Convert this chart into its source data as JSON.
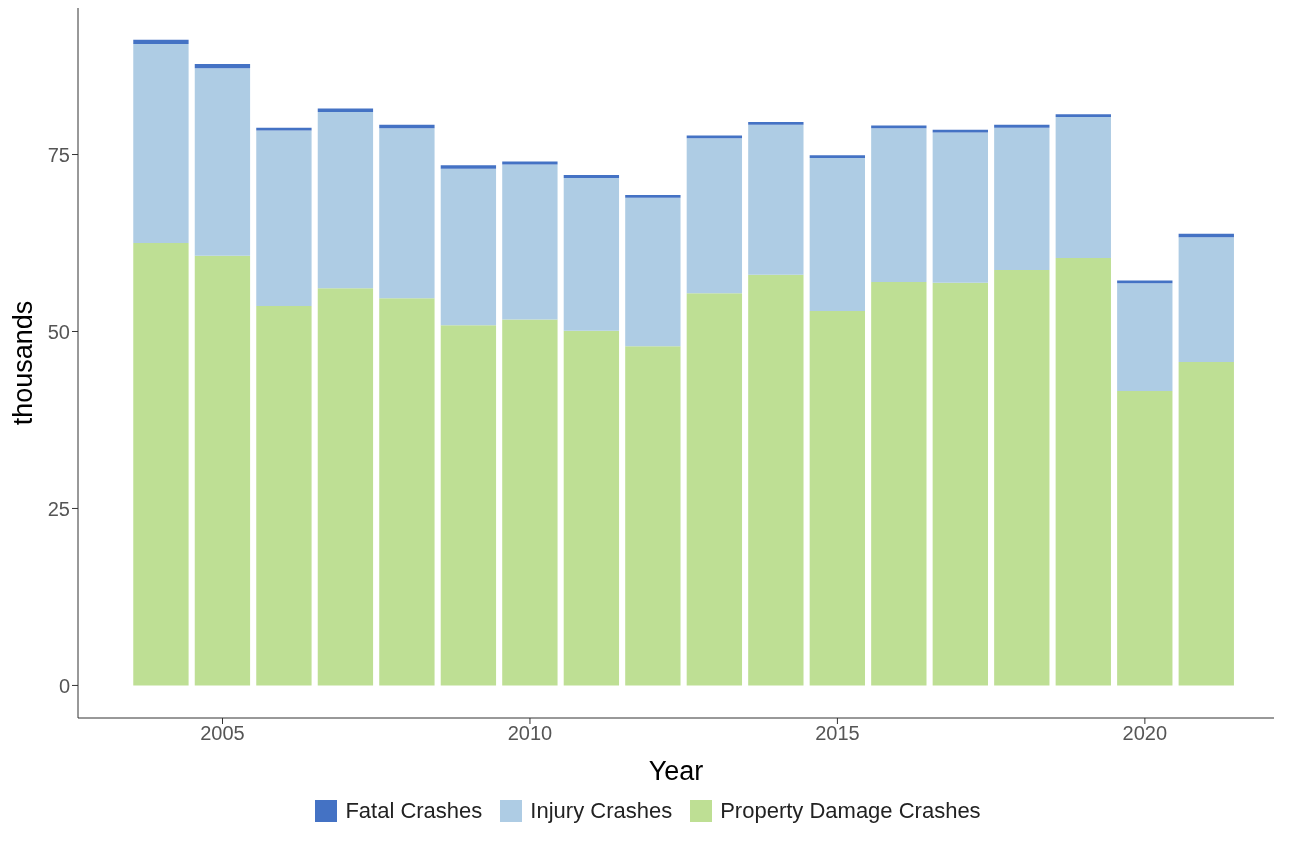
{
  "chart_data": {
    "type": "bar",
    "stacked": true,
    "xlabel": "Year",
    "ylabel": "thousands",
    "x": [
      2004,
      2005,
      2006,
      2007,
      2008,
      2009,
      2010,
      2011,
      2012,
      2013,
      2014,
      2015,
      2016,
      2017,
      2018,
      2019,
      2020,
      2021
    ],
    "series": [
      {
        "name": "Property Damage Crashes",
        "color": "#bedf94",
        "values": [
          62.5,
          60.7,
          53.6,
          56.1,
          54.7,
          50.9,
          51.7,
          50.1,
          47.9,
          55.4,
          58.0,
          52.9,
          57.0,
          56.9,
          58.7,
          60.4,
          41.6,
          45.7
        ]
      },
      {
        "name": "Injury Crashes",
        "color": "#aecce4",
        "values": [
          28.1,
          26.5,
          24.8,
          24.9,
          24.0,
          22.1,
          21.9,
          21.6,
          21.0,
          21.9,
          21.2,
          21.6,
          21.7,
          21.2,
          20.1,
          19.9,
          15.2,
          17.6
        ]
      },
      {
        "name": "Fatal Crashes",
        "color": "#4472c4",
        "values": [
          0.6,
          0.6,
          0.4,
          0.5,
          0.5,
          0.5,
          0.4,
          0.4,
          0.4,
          0.4,
          0.4,
          0.4,
          0.4,
          0.4,
          0.4,
          0.4,
          0.4,
          0.5
        ]
      }
    ],
    "xlim": [
      2002.65,
      2022.1
    ],
    "xticks": [
      2005,
      2010,
      2015,
      2020
    ],
    "ylim": [
      -4.6,
      95.7
    ],
    "yticks": [
      0,
      25,
      50,
      75
    ],
    "grid": false,
    "legend": "bottom"
  }
}
